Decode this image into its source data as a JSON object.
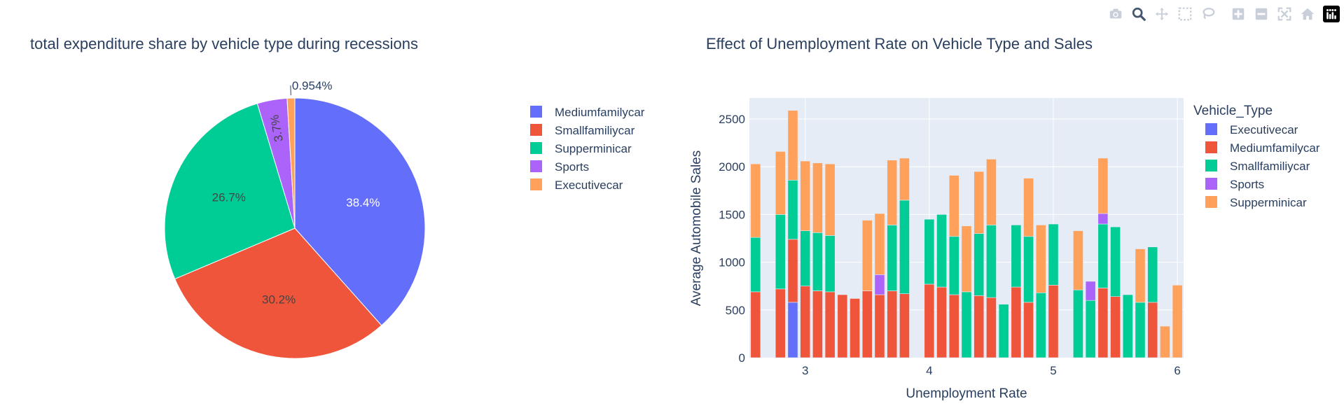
{
  "chart_data": [
    {
      "type": "pie",
      "title": "total expenditure share by vehicle type during recessions",
      "labels": [
        "Mediumfamilycar",
        "Smallfamiliycar",
        "Supperminicar",
        "Sports",
        "Executivecar"
      ],
      "values": [
        38.4,
        30.2,
        26.7,
        3.7,
        0.954
      ],
      "text_labels": [
        "38.4%",
        "30.2%",
        "26.7%",
        "3.7%",
        "0.954%"
      ],
      "colors": [
        "#636efa",
        "#EF553B",
        "#00cc96",
        "#ab63fa",
        "#FFA15A"
      ],
      "legend_position": "right"
    },
    {
      "type": "bar",
      "barmode": "stack",
      "title": "Effect of Unemployment Rate on Vehicle Type and Sales",
      "xlabel": "Unemployment Rate",
      "ylabel": "Average Automobile Sales",
      "legend_title": "Vehicle_Type",
      "xlim": [
        2.55,
        6.05
      ],
      "ylim": [
        0,
        2720
      ],
      "xticks": [
        3,
        4,
        5,
        6
      ],
      "yticks": [
        0,
        500,
        1000,
        1500,
        2000,
        2500
      ],
      "colors": {
        "Executivecar": "#636efa",
        "Mediumfamilycar": "#EF553B",
        "Smallfamiliycar": "#00cc96",
        "Sports": "#ab63fa",
        "Supperminicar": "#FFA15A"
      },
      "series_order": [
        "Executivecar",
        "Mediumfamilycar",
        "Smallfamiliycar",
        "Sports",
        "Supperminicar"
      ],
      "bars": [
        {
          "x": 2.6,
          "Mediumfamilycar": 690,
          "Smallfamiliycar": 570,
          "Supperminicar": 770
        },
        {
          "x": 2.8,
          "Mediumfamilycar": 720,
          "Smallfamiliycar": 780,
          "Supperminicar": 660
        },
        {
          "x": 2.9,
          "Executivecar": 580,
          "Mediumfamilycar": 660,
          "Smallfamiliycar": 620,
          "Supperminicar": 730
        },
        {
          "x": 3.0,
          "Mediumfamilycar": 750,
          "Smallfamiliycar": 580,
          "Supperminicar": 730
        },
        {
          "x": 3.1,
          "Mediumfamilycar": 700,
          "Smallfamiliycar": 610,
          "Supperminicar": 730
        },
        {
          "x": 3.2,
          "Mediumfamilycar": 690,
          "Smallfamiliycar": 590,
          "Supperminicar": 750
        },
        {
          "x": 3.3,
          "Mediumfamilycar": 660
        },
        {
          "x": 3.4,
          "Mediumfamilycar": 620
        },
        {
          "x": 3.5,
          "Mediumfamilycar": 700,
          "Supperminicar": 740
        },
        {
          "x": 3.6,
          "Mediumfamilycar": 660,
          "Sports": 210,
          "Supperminicar": 640
        },
        {
          "x": 3.7,
          "Mediumfamilycar": 700,
          "Smallfamiliycar": 690,
          "Supperminicar": 680
        },
        {
          "x": 3.8,
          "Mediumfamilycar": 670,
          "Smallfamiliycar": 980,
          "Supperminicar": 440
        },
        {
          "x": 4.0,
          "Mediumfamilycar": 770,
          "Smallfamiliycar": 680
        },
        {
          "x": 4.1,
          "Mediumfamilycar": 740,
          "Smallfamiliycar": 760
        },
        {
          "x": 4.2,
          "Mediumfamilycar": 660,
          "Smallfamiliycar": 610,
          "Supperminicar": 640
        },
        {
          "x": 4.3,
          "Smallfamiliycar": 690,
          "Supperminicar": 690
        },
        {
          "x": 4.4,
          "Mediumfamilycar": 650,
          "Smallfamiliycar": 650,
          "Supperminicar": 650
        },
        {
          "x": 4.5,
          "Mediumfamilycar": 630,
          "Smallfamiliycar": 760,
          "Supperminicar": 690
        },
        {
          "x": 4.6,
          "Smallfamiliycar": 560
        },
        {
          "x": 4.7,
          "Mediumfamilycar": 740,
          "Smallfamiliycar": 650
        },
        {
          "x": 4.8,
          "Mediumfamilycar": 580,
          "Smallfamiliycar": 690,
          "Supperminicar": 610
        },
        {
          "x": 4.9,
          "Smallfamiliycar": 680,
          "Supperminicar": 710
        },
        {
          "x": 5.0,
          "Mediumfamilycar": 760,
          "Smallfamiliycar": 640
        },
        {
          "x": 5.2,
          "Smallfamiliycar": 710,
          "Supperminicar": 620
        },
        {
          "x": 5.3,
          "Smallfamiliycar": 600,
          "Sports": 200
        },
        {
          "x": 5.4,
          "Mediumfamilycar": 730,
          "Smallfamiliycar": 670,
          "Sports": 110,
          "Supperminicar": 580
        },
        {
          "x": 5.5,
          "Mediumfamilycar": 640,
          "Smallfamiliycar": 730
        },
        {
          "x": 5.6,
          "Smallfamiliycar": 660
        },
        {
          "x": 5.7,
          "Smallfamiliycar": 580,
          "Supperminicar": 560
        },
        {
          "x": 5.8,
          "Mediumfamilycar": 580,
          "Smallfamiliycar": 580
        },
        {
          "x": 5.9,
          "Supperminicar": 330
        },
        {
          "x": 6.0,
          "Supperminicar": 760
        }
      ]
    }
  ],
  "modebar": [
    "camera-icon",
    "zoom-icon",
    "pan-icon",
    "box-select-icon",
    "lasso-select-icon",
    "zoom-in-icon",
    "zoom-out-icon",
    "autoscale-icon",
    "reset-axes-icon",
    "plotly-logo-icon"
  ]
}
